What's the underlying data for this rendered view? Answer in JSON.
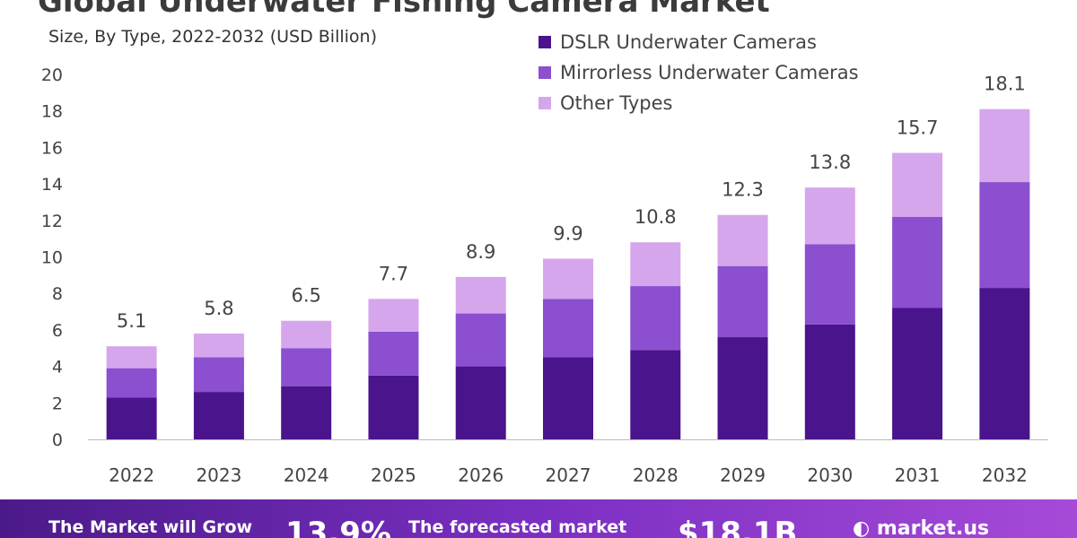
{
  "colors": {
    "dslr": "#4a148c",
    "mirrorless": "#8b4fd0",
    "other": "#d6a6ec",
    "axis": "#bbbbbb",
    "label": "#444444",
    "band_start": "#4b1a8a",
    "band_end": "#a64ad8"
  },
  "header": {
    "title": "Global Underwater Fishing Camera Market",
    "subtitle": "Size, By Type, 2022-2032 (USD Billion)"
  },
  "legend": [
    {
      "label": "DSLR Underwater Cameras",
      "color": "#4a148c"
    },
    {
      "label": "Mirrorless Underwater Cameras",
      "color": "#8b4fd0"
    },
    {
      "label": "Other Types",
      "color": "#d6a6ec"
    }
  ],
  "footer": {
    "grow_text": "The Market will Grow",
    "cagr": "13.9%",
    "forecast_text": "The forecasted market",
    "forecast_value": "$18.1B",
    "brand": "market.us"
  },
  "chart_data": {
    "type": "bar",
    "stacked": true,
    "title": "Global Underwater Fishing Camera Market",
    "subtitle": "Size, By Type, 2022-2032 (USD Billion)",
    "xlabel": "",
    "ylabel": "",
    "ylim": [
      0,
      20
    ],
    "yticks": [
      0,
      2,
      4,
      6,
      8,
      10,
      12,
      14,
      16,
      18,
      20
    ],
    "grid": false,
    "legend_position": "top-right",
    "categories": [
      "2022",
      "2023",
      "2024",
      "2025",
      "2026",
      "2027",
      "2028",
      "2029",
      "2030",
      "2031",
      "2032"
    ],
    "series": [
      {
        "name": "DSLR Underwater Cameras",
        "values": [
          2.3,
          2.6,
          2.9,
          3.5,
          4.0,
          4.5,
          4.9,
          5.6,
          6.3,
          7.2,
          8.3
        ]
      },
      {
        "name": "Mirrorless Underwater Cameras",
        "values": [
          1.6,
          1.9,
          2.1,
          2.4,
          2.9,
          3.2,
          3.5,
          3.9,
          4.4,
          5.0,
          5.8
        ]
      },
      {
        "name": "Other Types",
        "values": [
          1.2,
          1.3,
          1.5,
          1.8,
          2.0,
          2.2,
          2.4,
          2.8,
          3.1,
          3.5,
          4.0
        ]
      }
    ],
    "totals": [
      5.1,
      5.8,
      6.5,
      7.7,
      8.9,
      9.9,
      10.8,
      12.3,
      13.8,
      15.7,
      18.1
    ],
    "total_labels": [
      "5.1",
      "5.8",
      "6.5",
      "7.7",
      "8.9",
      "9.9",
      "10.8",
      "12.3",
      "13.8",
      "15.7",
      "18.1"
    ]
  }
}
